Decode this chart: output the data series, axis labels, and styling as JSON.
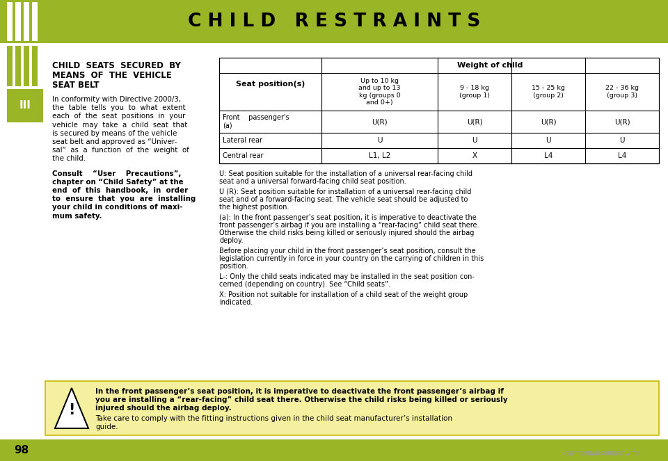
{
  "title": "C H I L D   R E S T R A I N T S",
  "title_bg": "#9ab526",
  "title_color": "#000000",
  "page_bg": "#ffffff",
  "sidebar_color": "#9ab526",
  "sidebar_stripe_color": "#ffffff",
  "page_number": "98",
  "chapter_label": "III",
  "section_title": "CHILD  SEATS  SECURED  BY\nMEANS  OF  THE  VEHICLE\nSEAT BELT",
  "intro_text": "In conformity with Directive 2000/3,\nthe  table  tells  you  to  what  extent\neach  of  the  seat  positions  in  your\nvehicle  may  take  a  child  seat  that\nis secured by means of the vehicle\nseat belt and approved as “Univer-\nsal”  as  a  function  of  the  weight  of\nthe child.",
  "bold_text": "Consult    “User    Precautions”,\nchapter on “Child Safety” at the\nend  of  this  handbook,  in  order\nto  ensure  that  you  are  installing\nyour child in conditions of maxi-\nmum safety.",
  "table_header_1": "Seat position(s)",
  "table_header_2": "Weight of child",
  "col_headers": [
    "Up to 10 kg\nand up to 13\nkg (groups 0\nand 0+)",
    "9 - 18 kg\n(group 1)",
    "15 - 25 kg\n(group 2)",
    "22 - 36 kg\n(group 3)"
  ],
  "rows": [
    [
      "Front    passenger's\n(a)",
      "U(R)",
      "U(R)",
      "U(R)",
      "U(R)"
    ],
    [
      "Lateral rear",
      "U",
      "U",
      "U",
      "U"
    ],
    [
      "Central rear",
      "L1, L2",
      "X",
      "L4",
      "L4"
    ]
  ],
  "notes": [
    "U: Seat position suitable for the installation of a universal rear-facing child\nseat and a universal forward-facing child seat position.",
    "U (R): Seat position suitable for installation of a universal rear-facing child\nseat and of a forward-facing seat. The vehicle seat should be adjusted to\nthe highest position.",
    "(a): In the front passenger’s seat position, it is imperative to deactivate the\nfront passenger’s airbag if you are installing a “rear-facing” child seat there.\nOtherwise the child risks being killed or seriously injured should the airbag\ndeploy.",
    "Before placing your child in the front passenger’s seat position, consult the\nlegislation currently in force in your country on the carrying of children in this\nposition.",
    "L-: Only the child seats indicated may be installed in the seat position con-\ncerned (depending on country). See “Child seats”.",
    "X: Position not suitable for installation of a child seat of the weight group\nindicated."
  ],
  "warning_text_bold": "In the front passenger’s seat position, it is imperative to deactivate the front passenger’s airbag if\nyou are installing a “rear-facing” child seat there. Otherwise the child risks being killed or seriously\ninjured should the airbag deploy.",
  "warning_text_normal": "Take care to comply with the fitting instructions given in the child seat manufacturer’s installation\nguide.",
  "watermark": "carmanualsonline.info",
  "bottom_bar_color": "#9ab526",
  "warning_box_bg": "#f5f0a0",
  "warning_box_edge": "#c8b800"
}
